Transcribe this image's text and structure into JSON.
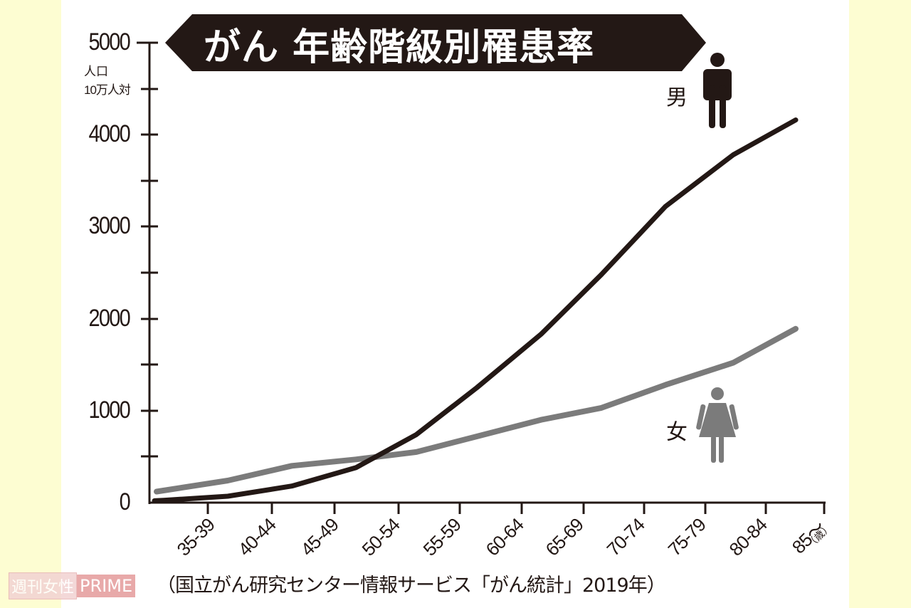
{
  "title": "がん 年齢階級別罹患率",
  "y_axis": {
    "unit_line1": "人口",
    "unit_line2": "10万人対",
    "tick_labels": [
      "5000",
      "4000",
      "3000",
      "2000",
      "1000",
      "0"
    ]
  },
  "x_axis": {
    "tick_labels": [
      "35-39",
      "40-44",
      "45-49",
      "50-54",
      "55-59",
      "60-64",
      "65-69",
      "70-74",
      "75-79",
      "80-84",
      "85〜"
    ],
    "unit": "（歳）"
  },
  "legend": {
    "male_label": "男",
    "female_label": "女"
  },
  "source": "（国立がん研究センター情報サービス「がん統計」2019年）",
  "watermark": {
    "part1": "週刊女性",
    "part2": "PRIME"
  },
  "colors": {
    "male_line": "#231815",
    "female_line": "#7b7b7b",
    "title_bg": "#231815",
    "side_bg": "#fdfdd2"
  },
  "chart_data": {
    "type": "line",
    "title": "がん 年齢階級別罹患率",
    "xlabel": "（歳）",
    "ylabel": "人口10万人対",
    "categories": [
      "35-39",
      "40-44",
      "45-49",
      "50-54",
      "55-59",
      "60-64",
      "65-69",
      "70-74",
      "75-79",
      "80-84",
      "85〜"
    ],
    "series": [
      {
        "name": "男",
        "values": [
          25,
          70,
          180,
          380,
          740,
          1250,
          1830,
          2480,
          3220,
          3780,
          4160
        ]
      },
      {
        "name": "女",
        "values": [
          120,
          240,
          400,
          470,
          550,
          720,
          900,
          1030,
          1280,
          1520,
          1890
        ]
      }
    ],
    "ylim": [
      0,
      5000
    ],
    "yticks": [
      0,
      1000,
      2000,
      3000,
      4000,
      5000
    ],
    "grid": false,
    "legend_position": "inline-right",
    "source": "国立がん研究センター情報サービス「がん統計」2019年"
  }
}
